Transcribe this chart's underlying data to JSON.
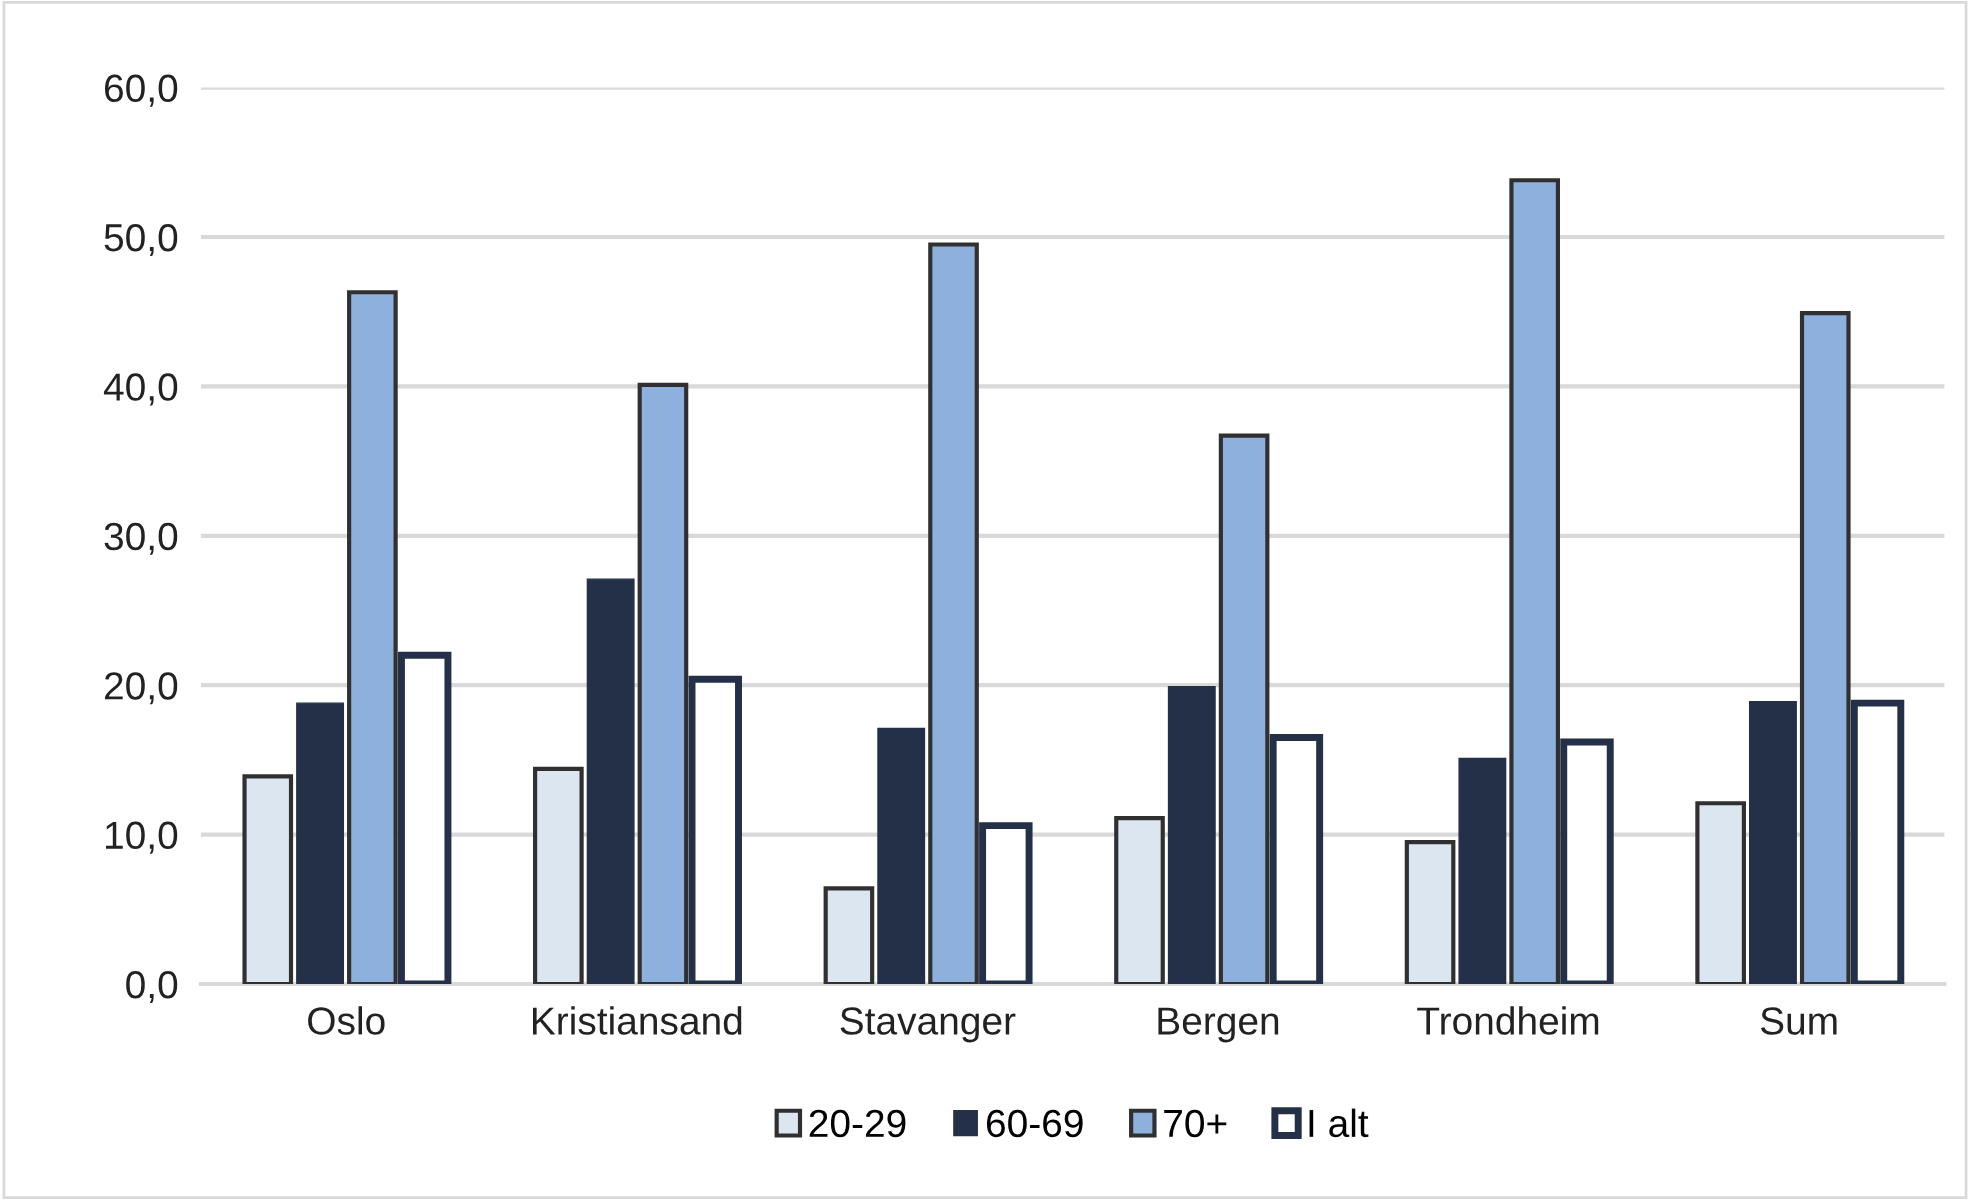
{
  "chart_data": {
    "type": "bar",
    "categories": [
      "Oslo",
      "Kristiansand",
      "Stavanger",
      "Bergen",
      "Trondheim",
      "Sum"
    ],
    "series": [
      {
        "name": "20-29",
        "color": "#dce6f1",
        "values": [
          13.9,
          14.4,
          6.4,
          11.1,
          9.5,
          12.1
        ]
      },
      {
        "name": "60-69",
        "color": "#242f48",
        "values": [
          18.8,
          27.1,
          17.1,
          19.9,
          15.1,
          18.9
        ]
      },
      {
        "name": "70+",
        "color": "#8eb0dc",
        "values": [
          46.3,
          40.1,
          49.5,
          36.7,
          53.8,
          44.9
        ]
      },
      {
        "name": "I alt",
        "color": "#ffffff",
        "values": [
          22.0,
          20.4,
          10.6,
          16.5,
          16.2,
          18.8
        ]
      }
    ],
    "ylim": [
      0,
      60
    ],
    "yticks": [
      {
        "value": 0,
        "label": "0,0"
      },
      {
        "value": 10,
        "label": "10,0"
      },
      {
        "value": 20,
        "label": "20,0"
      },
      {
        "value": 30,
        "label": "30,0"
      },
      {
        "value": 40,
        "label": "40,0"
      },
      {
        "value": 50,
        "label": "50,0"
      },
      {
        "value": 60,
        "label": "60,0"
      }
    ],
    "grid": "y",
    "legend": "bottom"
  }
}
